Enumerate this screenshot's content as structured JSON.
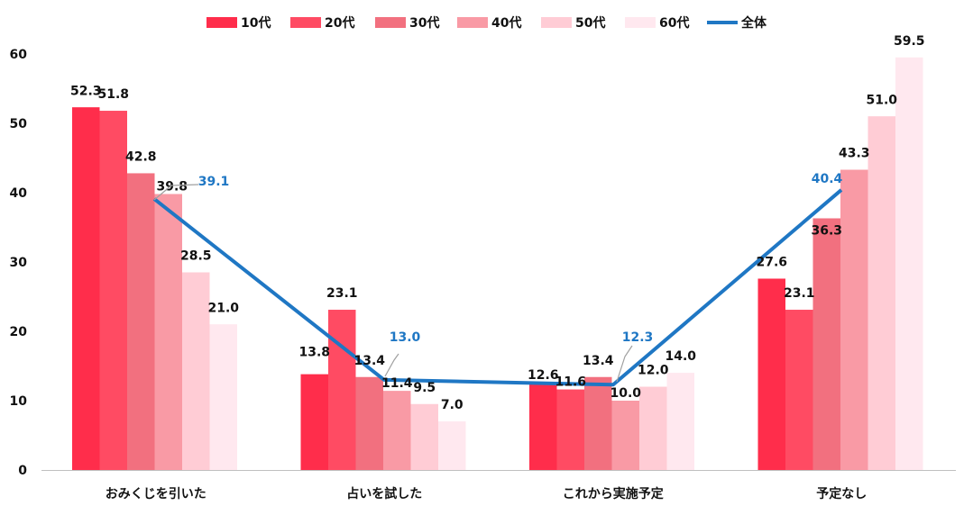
{
  "chart_data": {
    "type": "bar",
    "categories": [
      "おみくじを引いた",
      "占いを試した",
      "これから実施予定",
      "予定なし"
    ],
    "series": [
      {
        "name": "10代",
        "values": [
          52.3,
          13.8,
          12.6,
          27.6
        ],
        "color": "#FF2D4B"
      },
      {
        "name": "20代",
        "values": [
          51.8,
          23.1,
          11.6,
          23.1
        ],
        "color": "#FF4B63"
      },
      {
        "name": "30代",
        "values": [
          42.8,
          13.4,
          13.4,
          36.3
        ],
        "color": "#F2707F"
      },
      {
        "name": "40代",
        "values": [
          39.8,
          11.4,
          10.0,
          43.3
        ],
        "color": "#F99AA5"
      },
      {
        "name": "50代",
        "values": [
          28.5,
          9.5,
          12.0,
          51.0
        ],
        "color": "#FFCCD5"
      },
      {
        "name": "60代",
        "values": [
          21.0,
          7.0,
          14.0,
          59.5
        ],
        "color": "#FFE8EF"
      }
    ],
    "total_series": {
      "name": "全体",
      "type": "line",
      "values": [
        39.1,
        13.0,
        12.3,
        40.4
      ],
      "color": "#1F77C4"
    },
    "ylim": [
      0,
      60
    ],
    "yticks": [
      0,
      10,
      20,
      30,
      40,
      50,
      60
    ],
    "legend_position": "top",
    "grid": false
  }
}
